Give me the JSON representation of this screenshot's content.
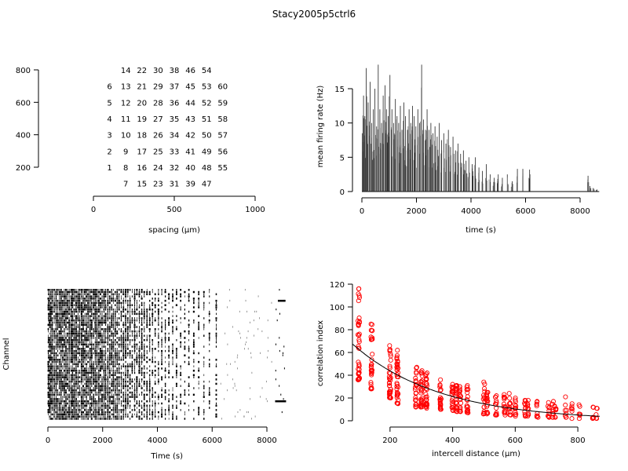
{
  "title": "Stacy2005p5ctrl6",
  "chart_data": [
    {
      "type": "scatter",
      "panel": "electrode-layout",
      "xlabel": "spacing (µm)",
      "ylabel": "",
      "xlim": [
        0,
        1000
      ],
      "ylim": [
        100,
        900
      ],
      "xticks": [
        0,
        500,
        1000
      ],
      "yticks": [
        200,
        400,
        600,
        800
      ],
      "points": [
        {
          "label": "1",
          "x": 100,
          "y": 200
        },
        {
          "label": "2",
          "x": 100,
          "y": 300
        },
        {
          "label": "3",
          "x": 100,
          "y": 400
        },
        {
          "label": "4",
          "x": 100,
          "y": 500
        },
        {
          "label": "5",
          "x": 100,
          "y": 600
        },
        {
          "label": "6",
          "x": 100,
          "y": 700
        },
        {
          "label": "7",
          "x": 200,
          "y": 100
        },
        {
          "label": "8",
          "x": 200,
          "y": 200
        },
        {
          "label": "9",
          "x": 200,
          "y": 300
        },
        {
          "label": "10",
          "x": 200,
          "y": 400
        },
        {
          "label": "11",
          "x": 200,
          "y": 500
        },
        {
          "label": "12",
          "x": 200,
          "y": 600
        },
        {
          "label": "13",
          "x": 200,
          "y": 700
        },
        {
          "label": "14",
          "x": 200,
          "y": 800
        },
        {
          "label": "15",
          "x": 300,
          "y": 100
        },
        {
          "label": "16",
          "x": 300,
          "y": 200
        },
        {
          "label": "17",
          "x": 300,
          "y": 300
        },
        {
          "label": "18",
          "x": 300,
          "y": 400
        },
        {
          "label": "19",
          "x": 300,
          "y": 500
        },
        {
          "label": "20",
          "x": 300,
          "y": 600
        },
        {
          "label": "21",
          "x": 300,
          "y": 700
        },
        {
          "label": "22",
          "x": 300,
          "y": 800
        },
        {
          "label": "23",
          "x": 400,
          "y": 100
        },
        {
          "label": "24",
          "x": 400,
          "y": 200
        },
        {
          "label": "25",
          "x": 400,
          "y": 300
        },
        {
          "label": "26",
          "x": 400,
          "y": 400
        },
        {
          "label": "27",
          "x": 400,
          "y": 500
        },
        {
          "label": "28",
          "x": 400,
          "y": 600
        },
        {
          "label": "29",
          "x": 400,
          "y": 700
        },
        {
          "label": "30",
          "x": 400,
          "y": 800
        },
        {
          "label": "31",
          "x": 500,
          "y": 100
        },
        {
          "label": "32",
          "x": 500,
          "y": 200
        },
        {
          "label": "33",
          "x": 500,
          "y": 300
        },
        {
          "label": "34",
          "x": 500,
          "y": 400
        },
        {
          "label": "35",
          "x": 500,
          "y": 500
        },
        {
          "label": "36",
          "x": 500,
          "y": 600
        },
        {
          "label": "37",
          "x": 500,
          "y": 700
        },
        {
          "label": "38",
          "x": 500,
          "y": 800
        },
        {
          "label": "39",
          "x": 600,
          "y": 100
        },
        {
          "label": "40",
          "x": 600,
          "y": 200
        },
        {
          "label": "41",
          "x": 600,
          "y": 300
        },
        {
          "label": "42",
          "x": 600,
          "y": 400
        },
        {
          "label": "43",
          "x": 600,
          "y": 500
        },
        {
          "label": "44",
          "x": 600,
          "y": 600
        },
        {
          "label": "45",
          "x": 600,
          "y": 700
        },
        {
          "label": "46",
          "x": 600,
          "y": 800
        },
        {
          "label": "47",
          "x": 700,
          "y": 100
        },
        {
          "label": "48",
          "x": 700,
          "y": 200
        },
        {
          "label": "49",
          "x": 700,
          "y": 300
        },
        {
          "label": "50",
          "x": 700,
          "y": 400
        },
        {
          "label": "51",
          "x": 700,
          "y": 500
        },
        {
          "label": "52",
          "x": 700,
          "y": 600
        },
        {
          "label": "53",
          "x": 700,
          "y": 700
        },
        {
          "label": "54",
          "x": 700,
          "y": 800
        },
        {
          "label": "55",
          "x": 800,
          "y": 200
        },
        {
          "label": "56",
          "x": 800,
          "y": 300
        },
        {
          "label": "57",
          "x": 800,
          "y": 400
        },
        {
          "label": "58",
          "x": 800,
          "y": 500
        },
        {
          "label": "59",
          "x": 800,
          "y": 600
        },
        {
          "label": "60",
          "x": 800,
          "y": 700
        }
      ]
    },
    {
      "type": "line",
      "panel": "firing-rate",
      "xlabel": "time (s)",
      "ylabel": "mean firing rate (Hz)",
      "xlim": [
        0,
        8700
      ],
      "ylim": [
        0,
        18.5
      ],
      "xticks": [
        0,
        2000,
        4000,
        6000,
        8000
      ],
      "yticks": [
        0,
        5,
        10,
        15
      ],
      "color": "#000000",
      "bursts": [
        {
          "t": 15,
          "rate": 8.5
        },
        {
          "t": 60,
          "rate": 14
        },
        {
          "t": 110,
          "rate": 11
        },
        {
          "t": 160,
          "rate": 18
        },
        {
          "t": 230,
          "rate": 13
        },
        {
          "t": 300,
          "rate": 16
        },
        {
          "t": 360,
          "rate": 10
        },
        {
          "t": 420,
          "rate": 12
        },
        {
          "t": 480,
          "rate": 15
        },
        {
          "t": 540,
          "rate": 9.5
        },
        {
          "t": 600,
          "rate": 18.5
        },
        {
          "t": 660,
          "rate": 12
        },
        {
          "t": 720,
          "rate": 10
        },
        {
          "t": 780,
          "rate": 14
        },
        {
          "t": 850,
          "rate": 15.5
        },
        {
          "t": 900,
          "rate": 12
        },
        {
          "t": 960,
          "rate": 11
        },
        {
          "t": 1030,
          "rate": 17
        },
        {
          "t": 1100,
          "rate": 12
        },
        {
          "t": 1160,
          "rate": 10
        },
        {
          "t": 1230,
          "rate": 13.5
        },
        {
          "t": 1290,
          "rate": 11
        },
        {
          "t": 1350,
          "rate": 10
        },
        {
          "t": 1410,
          "rate": 12.5
        },
        {
          "t": 1470,
          "rate": 9
        },
        {
          "t": 1540,
          "rate": 13
        },
        {
          "t": 1600,
          "rate": 11
        },
        {
          "t": 1670,
          "rate": 9
        },
        {
          "t": 1730,
          "rate": 12
        },
        {
          "t": 1790,
          "rate": 10
        },
        {
          "t": 1860,
          "rate": 12.5
        },
        {
          "t": 1920,
          "rate": 11
        },
        {
          "t": 1980,
          "rate": 9.5
        },
        {
          "t": 2050,
          "rate": 12
        },
        {
          "t": 2110,
          "rate": 10
        },
        {
          "t": 2190,
          "rate": 18.5
        },
        {
          "t": 2260,
          "rate": 10.5
        },
        {
          "t": 2330,
          "rate": 9
        },
        {
          "t": 2390,
          "rate": 12
        },
        {
          "t": 2460,
          "rate": 9
        },
        {
          "t": 2530,
          "rate": 10
        },
        {
          "t": 2600,
          "rate": 8.5
        },
        {
          "t": 2680,
          "rate": 9.5
        },
        {
          "t": 2760,
          "rate": 8
        },
        {
          "t": 2840,
          "rate": 10
        },
        {
          "t": 2920,
          "rate": 7.5
        },
        {
          "t": 3000,
          "rate": 8.5
        },
        {
          "t": 3080,
          "rate": 7
        },
        {
          "t": 3170,
          "rate": 9
        },
        {
          "t": 3250,
          "rate": 6.5
        },
        {
          "t": 3340,
          "rate": 8
        },
        {
          "t": 3430,
          "rate": 6
        },
        {
          "t": 3520,
          "rate": 7
        },
        {
          "t": 3620,
          "rate": 5.5
        },
        {
          "t": 3720,
          "rate": 6
        },
        {
          "t": 3820,
          "rate": 4.5
        },
        {
          "t": 3920,
          "rate": 5
        },
        {
          "t": 4040,
          "rate": 4
        },
        {
          "t": 4160,
          "rate": 5
        },
        {
          "t": 4290,
          "rate": 3.5
        },
        {
          "t": 4420,
          "rate": 3
        },
        {
          "t": 4560,
          "rate": 4
        },
        {
          "t": 4700,
          "rate": 2.5
        },
        {
          "t": 4850,
          "rate": 2
        },
        {
          "t": 5000,
          "rate": 2.5
        },
        {
          "t": 5150,
          "rate": 2
        },
        {
          "t": 5330,
          "rate": 2.5
        },
        {
          "t": 5510,
          "rate": 1.5
        },
        {
          "t": 5700,
          "rate": 3.3
        },
        {
          "t": 5900,
          "rate": 3.3
        },
        {
          "t": 6150,
          "rate": 3.2
        },
        {
          "t": 8290,
          "rate": 2.3
        },
        {
          "t": 8360,
          "rate": 0.8
        },
        {
          "t": 8480,
          "rate": 0.5
        },
        {
          "t": 8620,
          "rate": 0.3
        }
      ]
    },
    {
      "type": "raster",
      "panel": "spike-raster",
      "xlabel": "Time (s)",
      "ylabel": "Channel",
      "xlim": [
        0,
        8700
      ],
      "xticks": [
        0,
        2000,
        4000,
        6000,
        8000
      ],
      "channels": 60,
      "color": "#000000"
    },
    {
      "type": "scatter",
      "panel": "correlation-index",
      "xlabel": "intercell distance (µm)",
      "ylabel": "correlation index",
      "xlim": [
        80,
        870
      ],
      "ylim": [
        0,
        120
      ],
      "xticks": [
        200,
        400,
        600,
        800
      ],
      "yticks": [
        0,
        20,
        40,
        60,
        80,
        100,
        120
      ],
      "point_color": "#ff0000",
      "fit_color": "#000000",
      "groups": [
        {
          "d": 100,
          "min": 36,
          "max": 116,
          "n": 40
        },
        {
          "d": 141,
          "min": 28,
          "max": 85,
          "n": 30
        },
        {
          "d": 200,
          "min": 20,
          "max": 66,
          "n": 34
        },
        {
          "d": 224,
          "min": 15,
          "max": 62,
          "n": 36
        },
        {
          "d": 283,
          "min": 12,
          "max": 47,
          "n": 22
        },
        {
          "d": 300,
          "min": 12,
          "max": 44,
          "n": 28
        },
        {
          "d": 316,
          "min": 11,
          "max": 42,
          "n": 28
        },
        {
          "d": 361,
          "min": 10,
          "max": 36,
          "n": 22
        },
        {
          "d": 400,
          "min": 9,
          "max": 32,
          "n": 20
        },
        {
          "d": 412,
          "min": 8,
          "max": 31,
          "n": 22
        },
        {
          "d": 424,
          "min": 8,
          "max": 30,
          "n": 18
        },
        {
          "d": 447,
          "min": 7,
          "max": 31,
          "n": 20
        },
        {
          "d": 500,
          "min": 6,
          "max": 34,
          "n": 16
        },
        {
          "d": 510,
          "min": 6,
          "max": 25,
          "n": 16
        },
        {
          "d": 539,
          "min": 5,
          "max": 22,
          "n": 14
        },
        {
          "d": 566,
          "min": 5,
          "max": 23,
          "n": 14
        },
        {
          "d": 583,
          "min": 5,
          "max": 24,
          "n": 12
        },
        {
          "d": 600,
          "min": 4,
          "max": 20,
          "n": 12
        },
        {
          "d": 632,
          "min": 4,
          "max": 18,
          "n": 12
        },
        {
          "d": 640,
          "min": 4,
          "max": 18,
          "n": 10
        },
        {
          "d": 671,
          "min": 3,
          "max": 17,
          "n": 10
        },
        {
          "d": 707,
          "min": 3,
          "max": 16,
          "n": 10
        },
        {
          "d": 721,
          "min": 3,
          "max": 17,
          "n": 8
        },
        {
          "d": 728,
          "min": 3,
          "max": 13,
          "n": 8
        },
        {
          "d": 762,
          "min": 3,
          "max": 21,
          "n": 8
        },
        {
          "d": 781,
          "min": 2,
          "max": 15,
          "n": 6
        },
        {
          "d": 806,
          "min": 2,
          "max": 14,
          "n": 6
        },
        {
          "d": 849,
          "min": 2,
          "max": 12,
          "n": 6
        },
        {
          "d": 860,
          "min": 2,
          "max": 11,
          "n": 6
        }
      ],
      "fit": {
        "a": 90,
        "b": 0.0036
      }
    }
  ]
}
